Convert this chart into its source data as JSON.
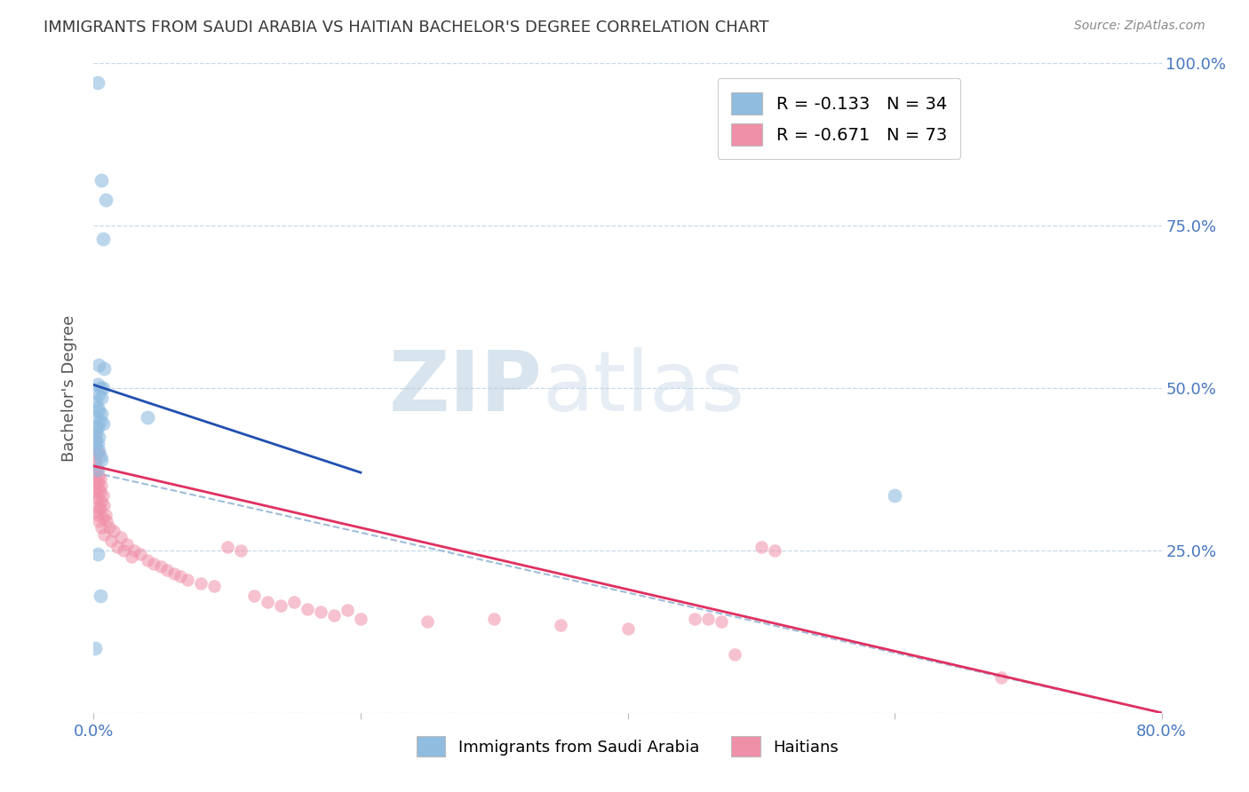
{
  "title": "IMMIGRANTS FROM SAUDI ARABIA VS HAITIAN BACHELOR'S DEGREE CORRELATION CHART",
  "source": "Source: ZipAtlas.com",
  "ylabel": "Bachelor's Degree",
  "xlim": [
    0.0,
    0.8
  ],
  "ylim": [
    0.0,
    1.0
  ],
  "legend_entry1_label": "R = -0.133   N = 34",
  "legend_entry2_label": "R = -0.671   N = 73",
  "legend_label1": "Immigrants from Saudi Arabia",
  "legend_label2": "Haitians",
  "watermark_zip": "ZIP",
  "watermark_atlas": "atlas",
  "blue_scatter_color": "#90bce0",
  "pink_scatter_color": "#f090a8",
  "blue_line_color": "#2050b0",
  "pink_line_color": "#e03060",
  "dashed_line_color": "#a0bcda",
  "background_color": "#ffffff",
  "grid_color": "#c8d8e8",
  "axis_label_color": "#4878c0",
  "title_color": "#383838",
  "blue_line": [
    [
      0.0,
      0.505
    ],
    [
      0.2,
      0.37
    ]
  ],
  "pink_line": [
    [
      0.0,
      0.38
    ],
    [
      0.8,
      0.0
    ]
  ],
  "dashed_line": [
    [
      0.0,
      0.37
    ],
    [
      0.8,
      0.0
    ]
  ],
  "blue_scatter": [
    [
      0.003,
      0.97
    ],
    [
      0.006,
      0.82
    ],
    [
      0.009,
      0.79
    ],
    [
      0.007,
      0.73
    ],
    [
      0.004,
      0.535
    ],
    [
      0.008,
      0.53
    ],
    [
      0.003,
      0.505
    ],
    [
      0.007,
      0.5
    ],
    [
      0.005,
      0.5
    ],
    [
      0.004,
      0.49
    ],
    [
      0.006,
      0.485
    ],
    [
      0.002,
      0.48
    ],
    [
      0.003,
      0.47
    ],
    [
      0.004,
      0.465
    ],
    [
      0.006,
      0.46
    ],
    [
      0.002,
      0.455
    ],
    [
      0.005,
      0.45
    ],
    [
      0.007,
      0.445
    ],
    [
      0.002,
      0.44
    ],
    [
      0.003,
      0.44
    ],
    [
      0.002,
      0.43
    ],
    [
      0.004,
      0.425
    ],
    [
      0.001,
      0.42
    ],
    [
      0.003,
      0.415
    ],
    [
      0.001,
      0.41
    ],
    [
      0.004,
      0.405
    ],
    [
      0.005,
      0.395
    ],
    [
      0.006,
      0.39
    ],
    [
      0.003,
      0.375
    ],
    [
      0.04,
      0.455
    ],
    [
      0.003,
      0.245
    ],
    [
      0.005,
      0.18
    ],
    [
      0.001,
      0.1
    ],
    [
      0.6,
      0.335
    ]
  ],
  "pink_scatter": [
    [
      0.001,
      0.43
    ],
    [
      0.002,
      0.415
    ],
    [
      0.003,
      0.4
    ],
    [
      0.004,
      0.4
    ],
    [
      0.001,
      0.39
    ],
    [
      0.002,
      0.385
    ],
    [
      0.003,
      0.375
    ],
    [
      0.001,
      0.375
    ],
    [
      0.004,
      0.365
    ],
    [
      0.005,
      0.36
    ],
    [
      0.002,
      0.36
    ],
    [
      0.003,
      0.355
    ],
    [
      0.001,
      0.35
    ],
    [
      0.006,
      0.35
    ],
    [
      0.004,
      0.345
    ],
    [
      0.005,
      0.34
    ],
    [
      0.002,
      0.34
    ],
    [
      0.007,
      0.335
    ],
    [
      0.003,
      0.33
    ],
    [
      0.001,
      0.33
    ],
    [
      0.006,
      0.325
    ],
    [
      0.008,
      0.32
    ],
    [
      0.004,
      0.315
    ],
    [
      0.005,
      0.315
    ],
    [
      0.002,
      0.31
    ],
    [
      0.009,
      0.305
    ],
    [
      0.003,
      0.305
    ],
    [
      0.007,
      0.3
    ],
    [
      0.01,
      0.295
    ],
    [
      0.004,
      0.295
    ],
    [
      0.012,
      0.285
    ],
    [
      0.006,
      0.285
    ],
    [
      0.015,
      0.28
    ],
    [
      0.008,
      0.275
    ],
    [
      0.02,
      0.27
    ],
    [
      0.013,
      0.265
    ],
    [
      0.025,
      0.26
    ],
    [
      0.018,
      0.255
    ],
    [
      0.03,
      0.25
    ],
    [
      0.022,
      0.25
    ],
    [
      0.035,
      0.245
    ],
    [
      0.028,
      0.24
    ],
    [
      0.04,
      0.235
    ],
    [
      0.045,
      0.23
    ],
    [
      0.05,
      0.225
    ],
    [
      0.055,
      0.22
    ],
    [
      0.06,
      0.215
    ],
    [
      0.065,
      0.21
    ],
    [
      0.07,
      0.205
    ],
    [
      0.08,
      0.2
    ],
    [
      0.09,
      0.195
    ],
    [
      0.1,
      0.255
    ],
    [
      0.11,
      0.25
    ],
    [
      0.12,
      0.18
    ],
    [
      0.13,
      0.17
    ],
    [
      0.14,
      0.165
    ],
    [
      0.15,
      0.17
    ],
    [
      0.16,
      0.16
    ],
    [
      0.17,
      0.155
    ],
    [
      0.18,
      0.15
    ],
    [
      0.19,
      0.158
    ],
    [
      0.2,
      0.145
    ],
    [
      0.25,
      0.14
    ],
    [
      0.3,
      0.145
    ],
    [
      0.35,
      0.135
    ],
    [
      0.4,
      0.13
    ],
    [
      0.45,
      0.145
    ],
    [
      0.46,
      0.145
    ],
    [
      0.47,
      0.14
    ],
    [
      0.48,
      0.09
    ],
    [
      0.5,
      0.255
    ],
    [
      0.51,
      0.25
    ],
    [
      0.68,
      0.055
    ]
  ]
}
